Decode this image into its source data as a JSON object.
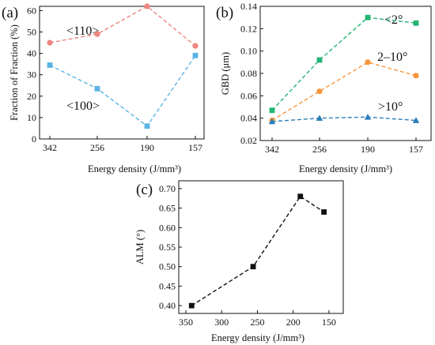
{
  "chart_data": [
    {
      "panel_label": "(a)",
      "type": "line",
      "categories": [
        "342",
        "256",
        "190",
        "157"
      ],
      "series": [
        {
          "name": "<110>",
          "values": [
            45,
            49,
            62,
            43.5
          ],
          "color": "#ee8580",
          "marker": "circle"
        },
        {
          "name": "<100>",
          "values": [
            34.5,
            23.5,
            6,
            39
          ],
          "color": "#5ab4e5",
          "marker": "square"
        }
      ],
      "xlabel": "Energy density (J/mm³)",
      "ylabel": "Fraction of Fraction (%)",
      "ylim": [
        0,
        62
      ],
      "yticks": [
        "0",
        "10",
        "20",
        "30",
        "40",
        "50",
        "60"
      ],
      "line_style": "dashed",
      "grid": false
    },
    {
      "panel_label": "(b)",
      "type": "line",
      "categories": [
        "342",
        "256",
        "190",
        "157"
      ],
      "series": [
        {
          "name": "<2°",
          "values": [
            0.047,
            0.092,
            0.13,
            0.125
          ],
          "color": "#22b573",
          "marker": "square"
        },
        {
          "name": "2–10°",
          "values": [
            0.038,
            0.064,
            0.09,
            0.078
          ],
          "color": "#f7953a",
          "marker": "circle"
        },
        {
          "name": ">10°",
          "values": [
            0.037,
            0.04,
            0.041,
            0.038
          ],
          "color": "#2a7fb8",
          "marker": "triangle"
        }
      ],
      "xlabel": "Energy density (J/mm³)",
      "ylabel": "GBD (μm)",
      "ylim": [
        0.02,
        0.14
      ],
      "yticks": [
        "0.02",
        "0.04",
        "0.06",
        "0.08",
        "0.10",
        "0.12",
        "0.14"
      ],
      "line_style": "dashed",
      "grid": false
    },
    {
      "panel_label": "(c)",
      "type": "line",
      "x": [
        342,
        256,
        190,
        157
      ],
      "series": [
        {
          "name": "",
          "values": [
            0.4,
            0.5,
            0.68,
            0.64
          ],
          "color": "#111111",
          "marker": "square"
        }
      ],
      "xlabel": "Energy density (J/mm³)",
      "ylabel": "ALM (°)",
      "xlim": [
        360,
        130
      ],
      "xticks": [
        "350",
        "300",
        "250",
        "200",
        "150"
      ],
      "ylim": [
        0.38,
        0.72
      ],
      "yticks": [
        "0.40",
        "0.45",
        "0.50",
        "0.55",
        "0.60",
        "0.65",
        "0.70"
      ],
      "line_style": "dashed",
      "grid": false
    }
  ]
}
